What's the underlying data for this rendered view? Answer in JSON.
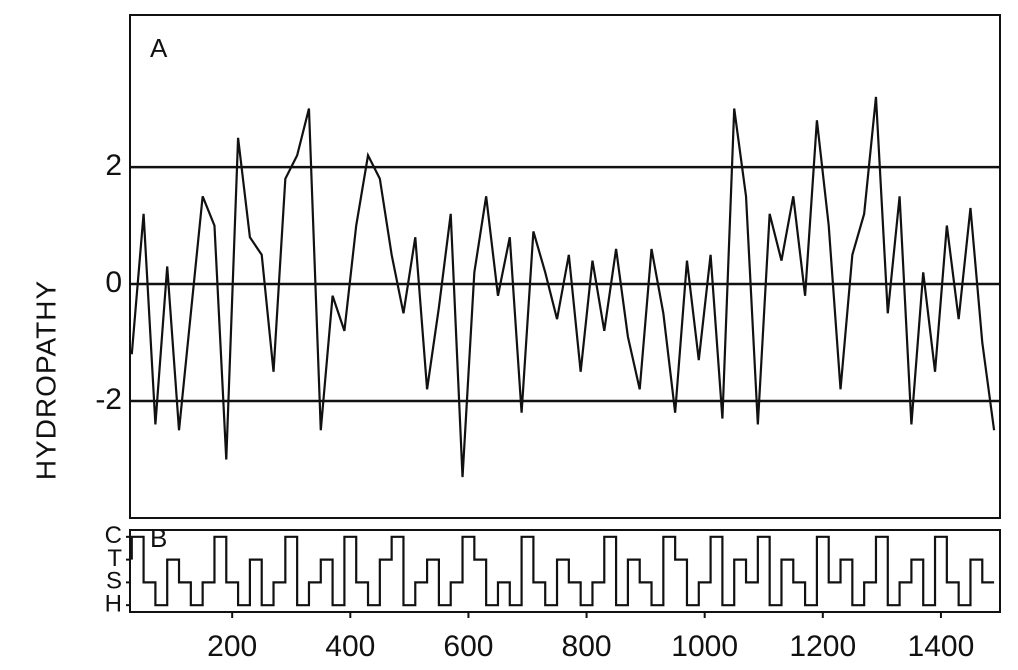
{
  "chart_data": [
    {
      "type": "line",
      "annotation": "A",
      "ylabel": "HYDROPATHY",
      "color": "#111",
      "x": [
        30,
        50,
        70,
        90,
        110,
        130,
        150,
        170,
        190,
        210,
        230,
        250,
        270,
        290,
        310,
        330,
        350,
        370,
        390,
        410,
        430,
        450,
        470,
        490,
        510,
        530,
        550,
        570,
        590,
        610,
        630,
        650,
        670,
        690,
        710,
        730,
        750,
        770,
        790,
        810,
        830,
        850,
        870,
        890,
        910,
        930,
        950,
        970,
        990,
        1010,
        1030,
        1050,
        1070,
        1090,
        1110,
        1130,
        1150,
        1170,
        1190,
        1210,
        1230,
        1250,
        1270,
        1290,
        1310,
        1330,
        1350,
        1370,
        1390,
        1410,
        1430,
        1450,
        1470,
        1490
      ],
      "values": [
        -1.2,
        1.2,
        -2.4,
        0.3,
        -2.5,
        -0.5,
        1.5,
        1.0,
        -3.0,
        2.5,
        0.8,
        0.5,
        -1.5,
        1.8,
        2.2,
        3.0,
        -2.5,
        -0.2,
        -0.8,
        1.0,
        2.2,
        1.8,
        0.5,
        -0.5,
        0.8,
        -1.8,
        -0.4,
        1.2,
        -3.3,
        0.2,
        1.5,
        -0.2,
        0.8,
        -2.2,
        0.9,
        0.2,
        -0.6,
        0.5,
        -1.5,
        0.4,
        -0.8,
        0.6,
        -0.9,
        -1.8,
        0.6,
        -0.5,
        -2.2,
        0.4,
        -1.3,
        0.5,
        -2.3,
        3.0,
        1.5,
        -2.4,
        1.2,
        0.4,
        1.5,
        -0.2,
        2.8,
        1.0,
        -1.8,
        0.5,
        1.2,
        3.2,
        -0.5,
        1.5,
        -2.4,
        0.2,
        -1.5,
        1.0,
        -0.6,
        1.3,
        -1.0,
        -2.5
      ],
      "xlim": [
        27,
        1500
      ],
      "ylim": [
        -4,
        4.6
      ],
      "yticks": [
        -2,
        0,
        2
      ],
      "grid": true
    },
    {
      "type": "step",
      "annotation": "B",
      "color": "#111",
      "x": [
        30,
        50,
        70,
        90,
        110,
        130,
        150,
        170,
        190,
        210,
        230,
        250,
        270,
        290,
        310,
        330,
        350,
        370,
        390,
        410,
        430,
        450,
        470,
        490,
        510,
        530,
        550,
        570,
        590,
        610,
        630,
        650,
        670,
        690,
        710,
        730,
        750,
        770,
        790,
        810,
        830,
        850,
        870,
        890,
        910,
        930,
        950,
        970,
        990,
        1010,
        1030,
        1050,
        1070,
        1090,
        1110,
        1130,
        1150,
        1170,
        1190,
        1210,
        1230,
        1250,
        1270,
        1290,
        1310,
        1330,
        1350,
        1370,
        1390,
        1410,
        1430,
        1450,
        1470,
        1490
      ],
      "values": [
        2,
        3,
        1,
        0,
        2,
        1,
        0,
        1,
        3,
        1,
        0,
        2,
        0,
        1,
        3,
        0,
        1,
        2,
        0,
        3,
        1,
        0,
        2,
        3,
        0,
        1,
        2,
        0,
        1,
        3,
        2,
        0,
        1,
        0,
        3,
        1,
        0,
        2,
        1,
        0,
        1,
        3,
        0,
        2,
        1,
        0,
        3,
        2,
        0,
        1,
        3,
        0,
        2,
        1,
        3,
        0,
        2,
        1,
        0,
        3,
        1,
        2,
        0,
        1,
        3,
        0,
        1,
        2,
        0,
        3,
        1,
        0,
        2,
        1
      ],
      "xlim": [
        27,
        1500
      ],
      "ylim": [
        -0.3,
        3.3
      ],
      "yticks": [
        {
          "value": 0,
          "label": "H"
        },
        {
          "value": 1,
          "label": "S"
        },
        {
          "value": 2,
          "label": "T"
        },
        {
          "value": 3,
          "label": "C"
        }
      ],
      "xticks": [
        200,
        400,
        600,
        800,
        1000,
        1200,
        1400
      ]
    }
  ]
}
